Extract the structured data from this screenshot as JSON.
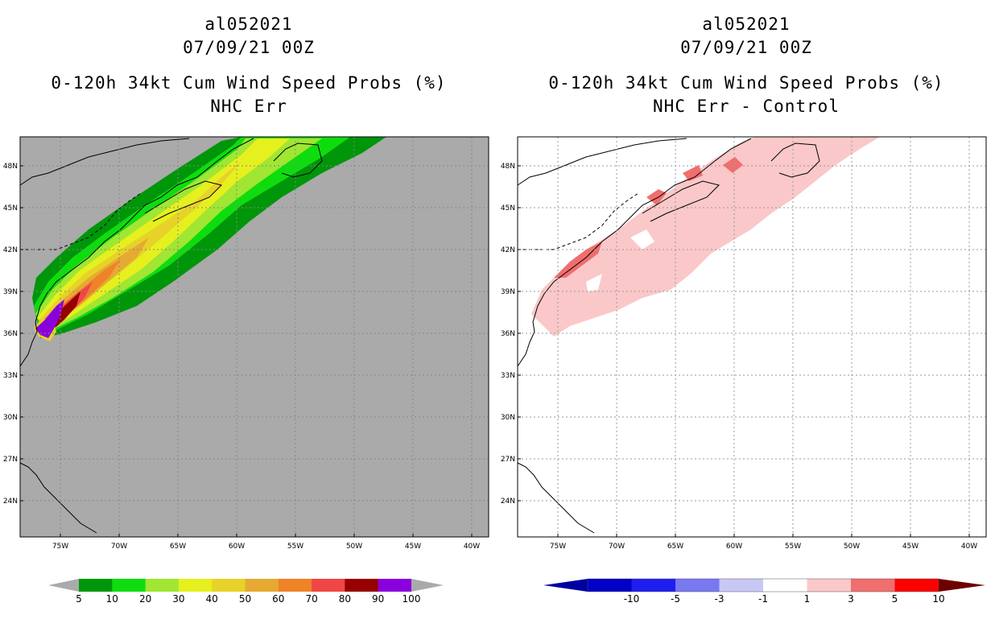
{
  "figure": {
    "left_panel": {
      "title_storm": "al052021",
      "title_date": "07/09/21 00Z",
      "title_product": "0-120h 34kt Cum Wind Speed Probs (%)",
      "title_run": "NHC Err",
      "ocean_color": "#aaaaaa",
      "colorbar": {
        "labels": [
          "5",
          "10",
          "20",
          "30",
          "40",
          "50",
          "60",
          "70",
          "80",
          "90",
          "100"
        ],
        "colors": [
          "#00960a",
          "#0fdc0f",
          "#a0e632",
          "#e6f01e",
          "#e6d228",
          "#e6aa32",
          "#f08228",
          "#f04646",
          "#960000",
          "#8a00dc"
        ],
        "end_color": "#aaaaaa"
      }
    },
    "right_panel": {
      "title_storm": "al052021",
      "title_date": "07/09/21 00Z",
      "title_product": "0-120h 34kt Cum Wind Speed Probs (%)",
      "title_run": "NHC Err - Control",
      "ocean_color": "#ffffff",
      "colorbar": {
        "labels": [
          "-10",
          "-5",
          "-3",
          "-1",
          "1",
          "3",
          "5",
          "10"
        ],
        "colors": [
          "#0000c8",
          "#1e1ef0",
          "#7878f0",
          "#c8c8f5",
          "#ffffff",
          "#fac8c8",
          "#f06e6e",
          "#ff0000"
        ],
        "low_end_color": "#0000a0",
        "high_end_color": "#6e0000"
      }
    },
    "map_axes": {
      "lat_labels": [
        "48N",
        "45N",
        "42N",
        "39N",
        "36N",
        "33N",
        "30N",
        "27N",
        "24N"
      ],
      "lon_labels": [
        "75W",
        "70W",
        "65W",
        "60W",
        "55W",
        "50W",
        "45W",
        "40W"
      ]
    }
  }
}
